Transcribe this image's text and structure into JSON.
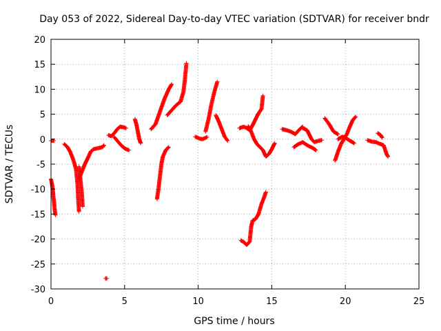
{
  "chart_data": {
    "type": "scatter",
    "title": "Day 053 of 2022, Sidereal Day-to-day VTEC variation (SDTVAR) for receiver bndr",
    "xlabel": "GPS time / hours",
    "ylabel": "SDTVAR / TECUs",
    "xlim": [
      0,
      25
    ],
    "ylim": [
      -30,
      20
    ],
    "xticks": [
      0,
      5,
      10,
      15,
      20,
      25
    ],
    "yticks": [
      -30,
      -25,
      -20,
      -15,
      -10,
      -5,
      0,
      5,
      10,
      15,
      20
    ],
    "grid": true,
    "marker": "+",
    "color": "#ff0000",
    "segments": [
      [
        [
          0.0,
          -0.3
        ],
        [
          0.2,
          -0.3
        ]
      ],
      [
        [
          0.0,
          -8.0
        ],
        [
          0.1,
          -9.5
        ],
        [
          0.15,
          -11.0
        ],
        [
          0.2,
          -12.5
        ],
        [
          0.25,
          -14.0
        ],
        [
          0.3,
          -15.2
        ]
      ],
      [
        [
          0.9,
          -1.0
        ],
        [
          1.1,
          -1.5
        ],
        [
          1.3,
          -2.5
        ],
        [
          1.5,
          -4.0
        ],
        [
          1.7,
          -6.0
        ],
        [
          1.8,
          -9.0
        ],
        [
          1.85,
          -12.0
        ],
        [
          1.9,
          -14.5
        ]
      ],
      [
        [
          1.9,
          -5.5
        ],
        [
          2.0,
          -8.0
        ],
        [
          2.1,
          -11.0
        ],
        [
          2.15,
          -13.5
        ]
      ],
      [
        [
          1.9,
          -8.0
        ],
        [
          2.1,
          -6.5
        ],
        [
          2.3,
          -5.0
        ],
        [
          2.5,
          -3.8
        ],
        [
          2.7,
          -2.5
        ],
        [
          2.9,
          -2.0
        ],
        [
          3.2,
          -1.8
        ],
        [
          3.5,
          -1.6
        ],
        [
          3.6,
          -1.2
        ]
      ],
      [
        [
          3.7,
          -27.9
        ],
        [
          3.8,
          -27.9
        ]
      ],
      [
        [
          3.9,
          0.8
        ],
        [
          4.1,
          0.6
        ],
        [
          4.3,
          1.2
        ],
        [
          4.5,
          2.0
        ],
        [
          4.7,
          2.5
        ],
        [
          4.9,
          2.4
        ],
        [
          5.1,
          2.2
        ]
      ],
      [
        [
          4.3,
          0.4
        ],
        [
          4.5,
          -0.3
        ],
        [
          4.7,
          -1.0
        ],
        [
          4.9,
          -1.6
        ],
        [
          5.1,
          -2.0
        ],
        [
          5.3,
          -2.2
        ]
      ],
      [
        [
          5.7,
          4.0
        ],
        [
          5.8,
          3.0
        ],
        [
          5.9,
          1.5
        ],
        [
          6.0,
          0.0
        ],
        [
          6.1,
          -0.8
        ]
      ],
      [
        [
          6.8,
          2.0
        ],
        [
          7.1,
          3.0
        ],
        [
          7.4,
          5.5
        ],
        [
          7.7,
          8.0
        ],
        [
          8.0,
          10.0
        ],
        [
          8.2,
          11.0
        ]
      ],
      [
        [
          7.2,
          -12.0
        ],
        [
          7.3,
          -10.0
        ],
        [
          7.4,
          -7.5
        ],
        [
          7.5,
          -5.0
        ],
        [
          7.6,
          -3.5
        ],
        [
          7.8,
          -2.2
        ],
        [
          8.0,
          -1.6
        ]
      ],
      [
        [
          7.9,
          4.8
        ],
        [
          8.2,
          5.8
        ],
        [
          8.5,
          6.8
        ],
        [
          8.8,
          7.5
        ],
        [
          9.0,
          9.5
        ],
        [
          9.1,
          12.0
        ],
        [
          9.2,
          15.2
        ]
      ],
      [
        [
          9.8,
          0.5
        ],
        [
          10.1,
          0.1
        ],
        [
          10.3,
          0.0
        ],
        [
          10.6,
          0.4
        ]
      ],
      [
        [
          10.5,
          1.5
        ],
        [
          10.7,
          4.0
        ],
        [
          10.9,
          7.0
        ],
        [
          11.1,
          9.5
        ],
        [
          11.3,
          11.5
        ]
      ],
      [
        [
          11.2,
          4.8
        ],
        [
          11.4,
          3.5
        ],
        [
          11.6,
          2.0
        ],
        [
          11.8,
          0.5
        ],
        [
          12.0,
          -0.3
        ]
      ],
      [
        [
          12.8,
          2.2
        ],
        [
          13.1,
          2.5
        ],
        [
          13.3,
          2.2
        ],
        [
          13.5,
          1.8
        ],
        [
          13.7,
          2.8
        ],
        [
          13.9,
          4.0
        ],
        [
          14.1,
          5.2
        ],
        [
          14.3,
          6.0
        ],
        [
          14.4,
          8.7
        ]
      ],
      [
        [
          13.4,
          2.6
        ],
        [
          13.6,
          1.5
        ],
        [
          13.8,
          0.0
        ],
        [
          14.0,
          -1.0
        ],
        [
          14.2,
          -1.6
        ],
        [
          14.4,
          -2.2
        ],
        [
          14.6,
          -3.5
        ],
        [
          14.8,
          -3.0
        ],
        [
          15.0,
          -2.0
        ],
        [
          15.2,
          -0.8
        ]
      ],
      [
        [
          12.9,
          -20.3
        ],
        [
          13.1,
          -20.6
        ],
        [
          13.3,
          -21.2
        ],
        [
          13.5,
          -20.5
        ],
        [
          13.6,
          -17.5
        ],
        [
          13.7,
          -16.3
        ],
        [
          13.9,
          -16.0
        ],
        [
          14.1,
          -15.0
        ],
        [
          14.3,
          -13.0
        ],
        [
          14.5,
          -11.5
        ],
        [
          14.6,
          -10.6
        ]
      ],
      [
        [
          15.7,
          2.0
        ],
        [
          16.0,
          1.8
        ],
        [
          16.3,
          1.5
        ],
        [
          16.6,
          1.0
        ],
        [
          16.9,
          2.0
        ],
        [
          17.1,
          2.5
        ]
      ],
      [
        [
          16.5,
          -1.6
        ],
        [
          16.8,
          -1.0
        ],
        [
          17.1,
          -0.6
        ],
        [
          17.4,
          -1.2
        ],
        [
          17.8,
          -1.8
        ],
        [
          18.0,
          -2.2
        ]
      ],
      [
        [
          17.1,
          2.2
        ],
        [
          17.4,
          1.8
        ],
        [
          17.7,
          0.0
        ],
        [
          17.9,
          -0.6
        ],
        [
          18.2,
          -0.3
        ],
        [
          18.4,
          -0.2
        ]
      ],
      [
        [
          18.6,
          4.2
        ],
        [
          18.9,
          3.0
        ],
        [
          19.2,
          1.5
        ],
        [
          19.5,
          1.0
        ]
      ],
      [
        [
          19.3,
          -4.3
        ],
        [
          19.5,
          -2.5
        ],
        [
          19.7,
          -1.0
        ],
        [
          19.9,
          0.0
        ],
        [
          20.1,
          1.0
        ],
        [
          20.3,
          2.5
        ],
        [
          20.5,
          3.8
        ],
        [
          20.7,
          4.5
        ]
      ],
      [
        [
          19.5,
          0.0
        ],
        [
          19.8,
          0.5
        ],
        [
          20.0,
          0.3
        ],
        [
          20.3,
          -0.3
        ],
        [
          20.6,
          -0.8
        ]
      ],
      [
        [
          21.5,
          -0.2
        ],
        [
          21.8,
          -0.5
        ],
        [
          22.1,
          -0.6
        ],
        [
          22.3,
          -0.9
        ],
        [
          22.6,
          -1.2
        ],
        [
          22.8,
          -3.0
        ],
        [
          22.9,
          -3.5
        ]
      ],
      [
        [
          22.2,
          1.2
        ],
        [
          22.4,
          0.8
        ],
        [
          22.5,
          0.3
        ]
      ]
    ]
  }
}
